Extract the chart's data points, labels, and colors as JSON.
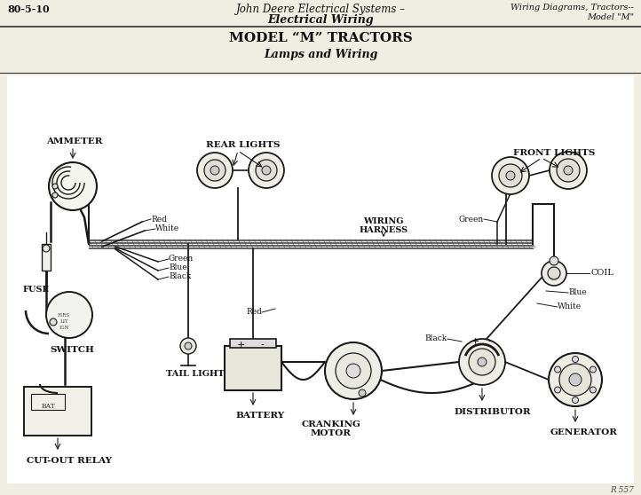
{
  "bg_color": "#f0ede3",
  "diagram_bg": "#ffffff",
  "header_bg": "#f0ede3",
  "lc": "#1a1a1a",
  "tc": "#111111",
  "header_line1_left": "80-5-10",
  "header_line1_center": "John Deere Electrical Systems –",
  "header_line2_center": "Electrical Wiring",
  "header_line1_right": "Wiring Diagrams, Tractors--",
  "header_line2_right": "Model \"M\"",
  "title1": "MODEL “M” TRACTORS",
  "title2": "Lamps and Wiring",
  "page_num": "R 557",
  "labels": {
    "ammeter": "AMMETER",
    "fuse": "FUSE",
    "switch": "SWITCH",
    "cut_out_relay": "CUT-OUT RELAY",
    "tail_light": "TAIL LIGHT",
    "battery": "BATTERY",
    "cranking_motor": "CRANKING\nMOTOR",
    "rear_lights": "REAR LIGHTS",
    "wiring_harness": "WIRING\nHARNESS",
    "distributor": "DISTRIBUTOR",
    "front_lights": "FRONT LIGHTS",
    "coil": "COIL",
    "generator": "GENERATOR",
    "red1": "Red",
    "white1": "White",
    "green1": "Green",
    "blue1": "Blue",
    "black1": "Black",
    "red2": "Red",
    "green2": "Green",
    "black2": "Black",
    "blue2": "Blue",
    "white2": "White"
  }
}
